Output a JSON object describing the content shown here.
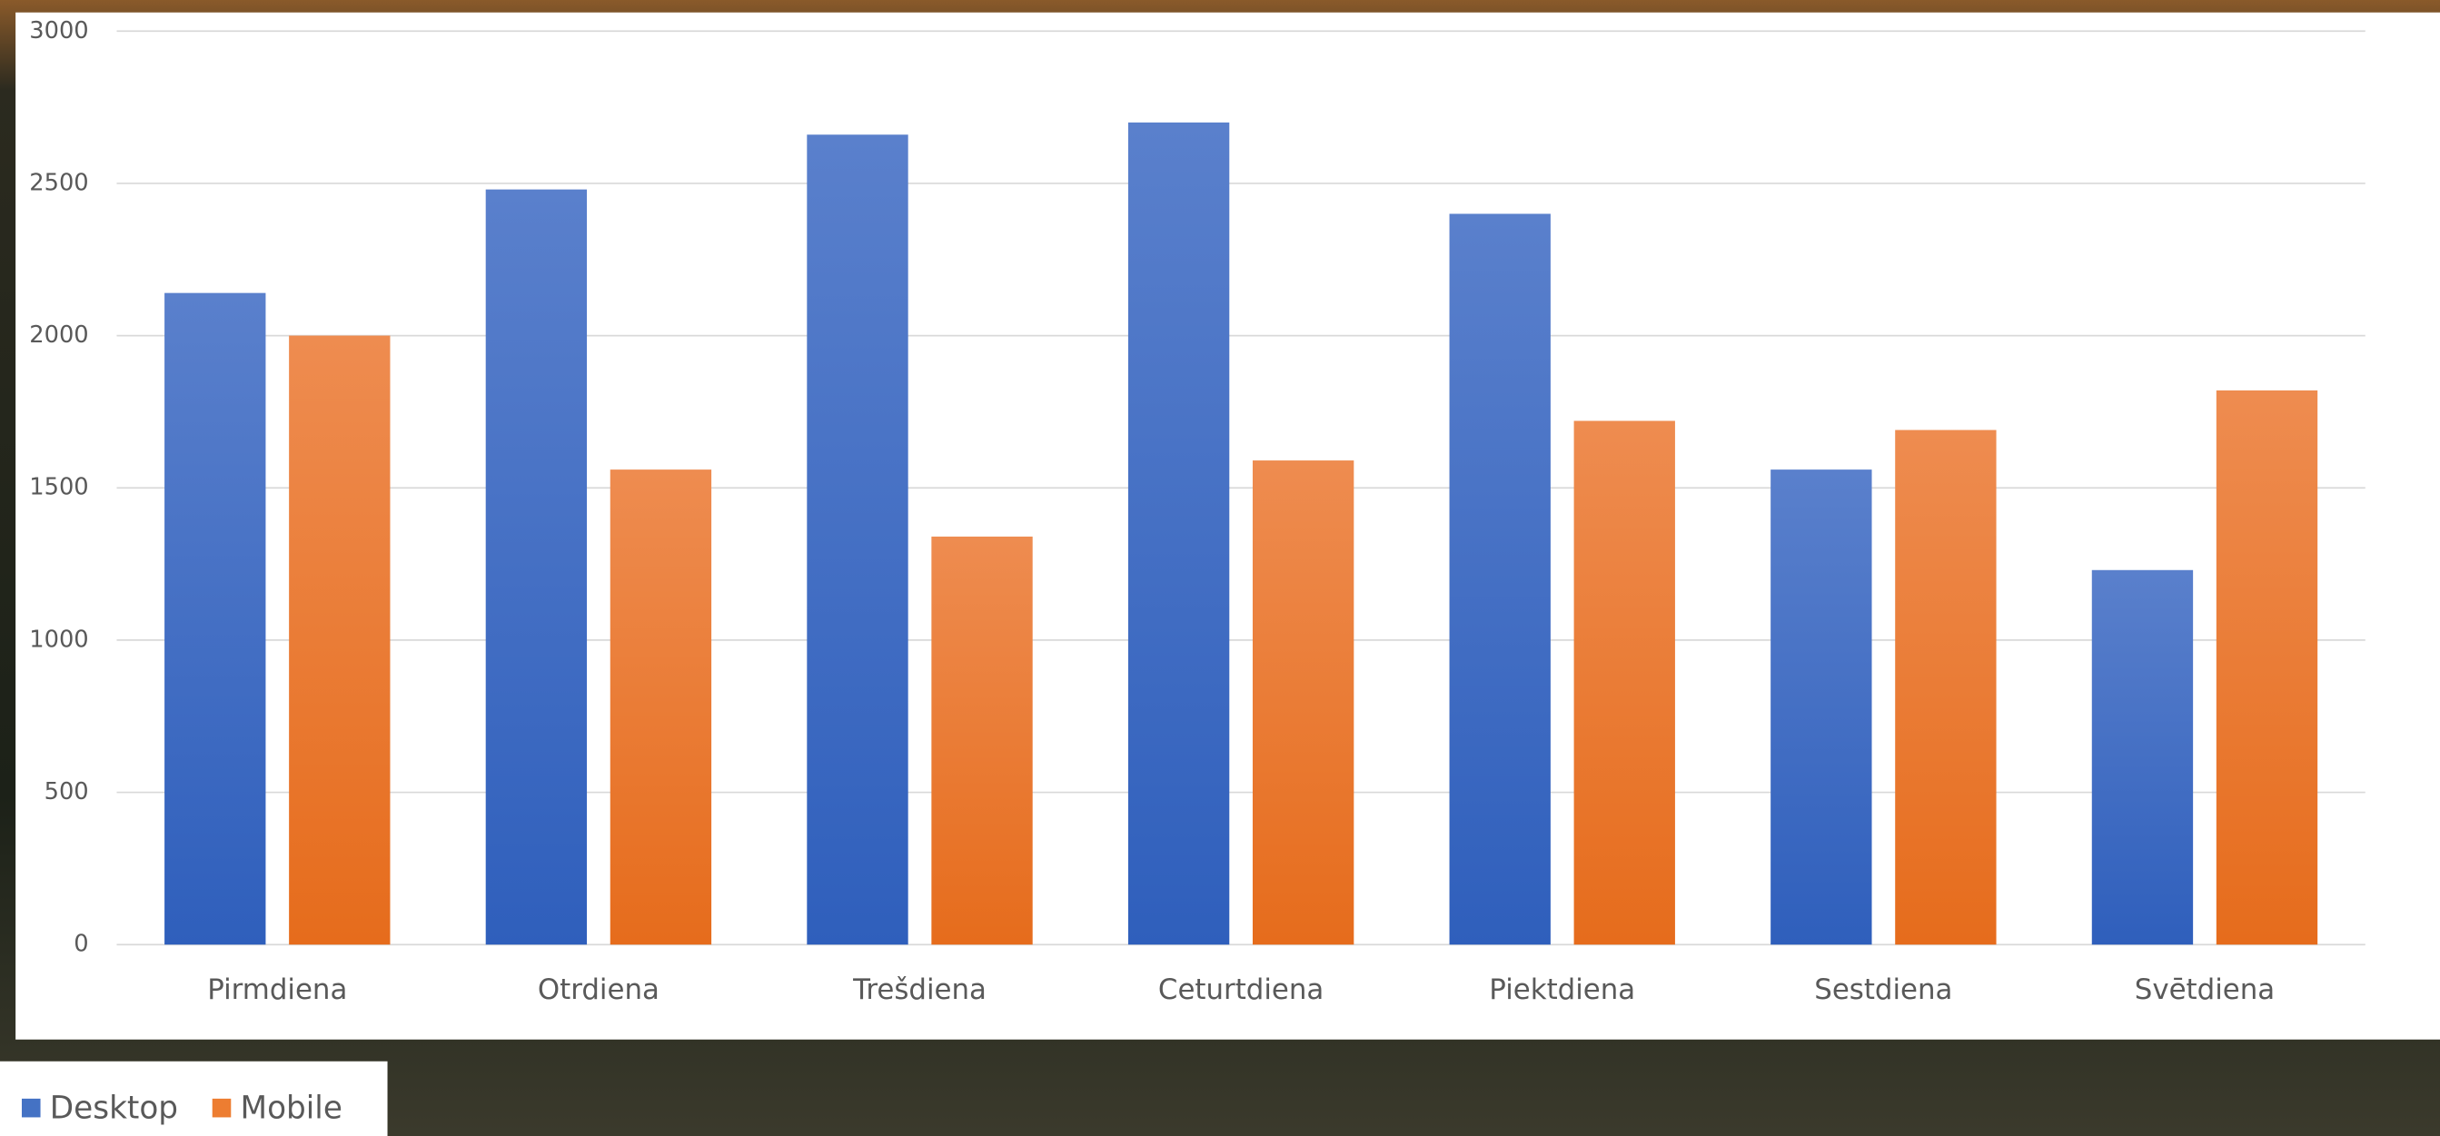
{
  "chart_data": {
    "type": "bar",
    "categories": [
      "Pirmdiena",
      "Otrdiena",
      "Trešdiena",
      "Ceturtdiena",
      "Piektdiena",
      "Sestdiena",
      "Svētdiena"
    ],
    "series": [
      {
        "name": "Desktop",
        "color": "#4472c4",
        "values": [
          2140,
          2480,
          2660,
          2700,
          2400,
          1560,
          1230
        ]
      },
      {
        "name": "Mobile",
        "color": "#ed7d31",
        "values": [
          2000,
          1560,
          1340,
          1590,
          1720,
          1690,
          1820
        ]
      }
    ],
    "ylim": [
      0,
      3000
    ],
    "yticks": [
      0,
      500,
      1000,
      1500,
      2000,
      2500,
      3000
    ],
    "grid": true,
    "legend": "bottom-left"
  }
}
